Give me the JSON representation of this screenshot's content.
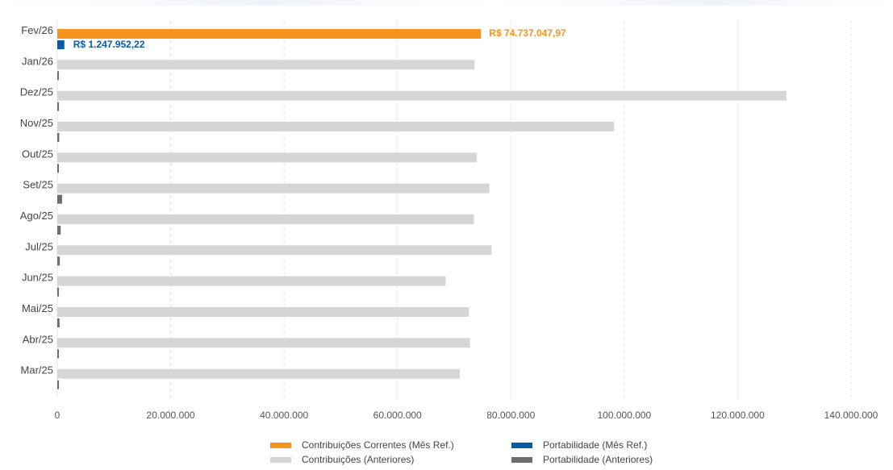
{
  "chart_data": {
    "type": "bar",
    "orientation": "horizontal",
    "title": "",
    "xlabel": "",
    "ylabel": "",
    "xlim": [
      0,
      140000000
    ],
    "x_ticks": [
      0,
      20000000,
      40000000,
      60000000,
      80000000,
      100000000,
      120000000,
      140000000
    ],
    "x_tick_labels": [
      "0",
      "20.000.000",
      "40.000.000",
      "60.000.000",
      "80.000.000",
      "100.000.000",
      "120.000.000",
      "140.000.000"
    ],
    "grid": "vertical dashed",
    "legend_position": "bottom",
    "categories": [
      "Fev/26",
      "Jan/26",
      "Dez/25",
      "Nov/25",
      "Out/25",
      "Set/25",
      "Ago/25",
      "Jul/25",
      "Jun/25",
      "Mai/25",
      "Abr/25",
      "Mar/25"
    ],
    "series": [
      {
        "name": "Contribuições Correntes (Mês Ref.)",
        "color": "#f7941d",
        "values": [
          74737047.97,
          null,
          null,
          null,
          null,
          null,
          null,
          null,
          null,
          null,
          null,
          null
        ]
      },
      {
        "name": "Portabilidade (Mês Ref.)",
        "color": "#0b5aa6",
        "values": [
          1247952.22,
          null,
          null,
          null,
          null,
          null,
          null,
          null,
          null,
          null,
          null,
          null
        ]
      },
      {
        "name": "Contribuições (Anteriores)",
        "color": "#d6d6d6",
        "values": [
          null,
          73600000,
          128600000,
          98200000,
          74000000,
          76200000,
          73500000,
          76600000,
          68500000,
          72600000,
          72800000,
          71000000
        ]
      },
      {
        "name": "Portabilidade (Anteriores)",
        "color": "#6d6d6d",
        "values": [
          null,
          150000,
          150000,
          350000,
          150000,
          850000,
          600000,
          450000,
          150000,
          400000,
          150000,
          150000
        ]
      }
    ],
    "data_labels": [
      {
        "series": "Contribuições Correntes (Mês Ref.)",
        "category": "Fev/26",
        "text": "R$ 74.737.047,97"
      },
      {
        "series": "Portabilidade (Mês Ref.)",
        "category": "Fev/26",
        "text": "R$ 1.247.952,22"
      }
    ]
  }
}
